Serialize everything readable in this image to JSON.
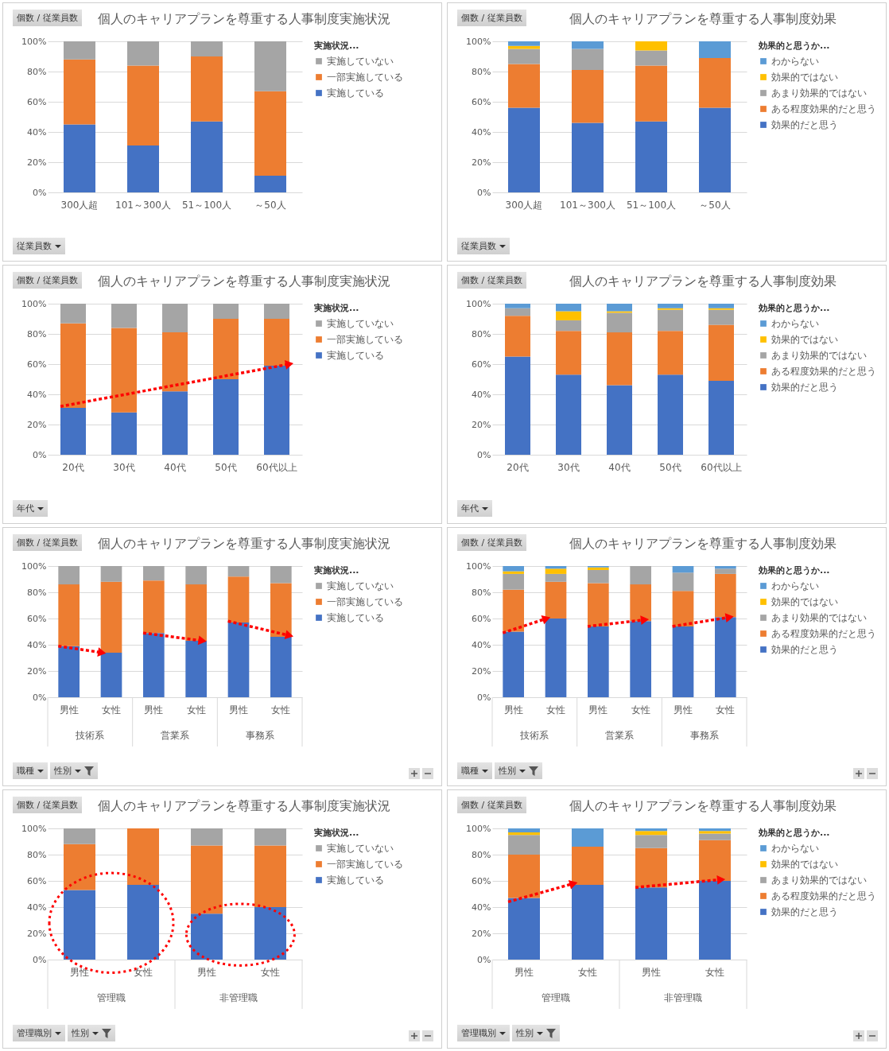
{
  "chart_data": [
    {
      "type": "bar",
      "stacked": true,
      "title": "個人のキャリアプランを尊重する人事制度実施状況",
      "ylabel": "個数 / 従業員数",
      "xlabel": "従業員数",
      "legend_title": "実施状況...",
      "legend": "right",
      "grid": "y",
      "categories": [
        "300人超",
        "101～300人",
        "51～100人",
        "～50人"
      ],
      "ylim": [
        0,
        100
      ],
      "yticks": [
        {
          "value": 0,
          "label": "0%"
        },
        {
          "value": 20,
          "label": "20%"
        },
        {
          "value": 40,
          "label": "40%"
        },
        {
          "value": 60,
          "label": "60%"
        },
        {
          "value": 80,
          "label": "80%"
        },
        {
          "value": 100,
          "label": "100%"
        }
      ],
      "series": [
        {
          "name": "実施している",
          "color": "#4472c4",
          "values": [
            45,
            31,
            47,
            11
          ]
        },
        {
          "name": "一部実施している",
          "color": "#ed7d31",
          "values": [
            43,
            53,
            43,
            56
          ]
        },
        {
          "name": "実施していない",
          "color": "#a5a5a5",
          "values": [
            12,
            16,
            10,
            33
          ]
        }
      ]
    },
    {
      "type": "bar",
      "stacked": true,
      "title": "個人のキャリアプランを尊重する人事制度効果",
      "ylabel": "個数 / 従業員数",
      "xlabel": "従業員数",
      "legend_title": "効果的と思うか...",
      "legend": "right",
      "grid": "y",
      "categories": [
        "300人超",
        "101～300人",
        "51～100人",
        "～50人"
      ],
      "ylim": [
        0,
        100
      ],
      "yticks": [
        {
          "value": 0,
          "label": "0%"
        },
        {
          "value": 20,
          "label": "20%"
        },
        {
          "value": 40,
          "label": "40%"
        },
        {
          "value": 60,
          "label": "60%"
        },
        {
          "value": 80,
          "label": "80%"
        },
        {
          "value": 100,
          "label": "100%"
        }
      ],
      "series": [
        {
          "name": "効果的だと思う",
          "color": "#4472c4",
          "values": [
            56,
            46,
            47,
            56
          ]
        },
        {
          "name": "ある程度効果的だと思う",
          "color": "#ed7d31",
          "values": [
            29,
            35,
            37,
            33
          ]
        },
        {
          "name": "あまり効果的ではない",
          "color": "#a5a5a5",
          "values": [
            10,
            14,
            10,
            0
          ]
        },
        {
          "name": "効果的ではない",
          "color": "#ffc000",
          "values": [
            2,
            0,
            6,
            0
          ]
        },
        {
          "name": "わからない",
          "color": "#5b9bd5",
          "values": [
            3,
            5,
            0,
            11
          ]
        }
      ]
    },
    {
      "type": "bar",
      "stacked": true,
      "title": "個人のキャリアプランを尊重する人事制度実施状況",
      "ylabel": "個数 / 従業員数",
      "xlabel": "年代",
      "legend_title": "実施状況...",
      "legend": "right",
      "grid": "y",
      "categories": [
        "20代",
        "30代",
        "40代",
        "50代",
        "60代以上"
      ],
      "ylim": [
        0,
        100
      ],
      "yticks": [
        {
          "value": 0,
          "label": "0%"
        },
        {
          "value": 20,
          "label": "20%"
        },
        {
          "value": 40,
          "label": "40%"
        },
        {
          "value": 60,
          "label": "60%"
        },
        {
          "value": 80,
          "label": "80%"
        },
        {
          "value": 100,
          "label": "100%"
        }
      ],
      "series": [
        {
          "name": "実施している",
          "color": "#4472c4",
          "values": [
            31,
            28,
            42,
            50,
            59
          ]
        },
        {
          "name": "一部実施している",
          "color": "#ed7d31",
          "values": [
            56,
            56,
            39,
            40,
            31
          ]
        },
        {
          "name": "実施していない",
          "color": "#a5a5a5",
          "values": [
            13,
            16,
            19,
            10,
            10
          ]
        }
      ]
    },
    {
      "type": "bar",
      "stacked": true,
      "title": "個人のキャリアプランを尊重する人事制度効果",
      "ylabel": "個数 / 従業員数",
      "xlabel": "年代",
      "legend_title": "効果的と思うか...",
      "legend": "right",
      "grid": "y",
      "categories": [
        "20代",
        "30代",
        "40代",
        "50代",
        "60代以上"
      ],
      "ylim": [
        0,
        100
      ],
      "yticks": [
        {
          "value": 0,
          "label": "0%"
        },
        {
          "value": 20,
          "label": "20%"
        },
        {
          "value": 40,
          "label": "40%"
        },
        {
          "value": 60,
          "label": "60%"
        },
        {
          "value": 80,
          "label": "80%"
        },
        {
          "value": 100,
          "label": "100%"
        }
      ],
      "series": [
        {
          "name": "効果的だと思う",
          "color": "#4472c4",
          "values": [
            65,
            53,
            46,
            53,
            49
          ]
        },
        {
          "name": "ある程度効果的だと思う",
          "color": "#ed7d31",
          "values": [
            27,
            29,
            35,
            29,
            37
          ]
        },
        {
          "name": "あまり効果的ではない",
          "color": "#a5a5a5",
          "values": [
            5,
            7,
            13,
            14,
            10
          ]
        },
        {
          "name": "効果的ではない",
          "color": "#ffc000",
          "values": [
            0,
            6,
            1,
            1,
            1
          ]
        },
        {
          "name": "わからない",
          "color": "#5b9bd5",
          "values": [
            3,
            5,
            5,
            3,
            3
          ]
        }
      ]
    },
    {
      "type": "bar",
      "stacked": true,
      "title": "個人のキャリアプランを尊重する人事制度実施状況",
      "ylabel": "個数 / 従業員数",
      "xlabel": "職種 性別",
      "legend_title": "実施状況...",
      "legend": "right",
      "grid": "y",
      "categories": [
        "男性",
        "女性",
        "男性",
        "女性",
        "男性",
        "女性"
      ],
      "annotations": [
        "技術系",
        "営業系",
        "事務系"
      ],
      "ylim": [
        0,
        100
      ],
      "yticks": [
        {
          "value": 0,
          "label": "0%"
        },
        {
          "value": 20,
          "label": "20%"
        },
        {
          "value": 40,
          "label": "40%"
        },
        {
          "value": 60,
          "label": "60%"
        },
        {
          "value": 80,
          "label": "80%"
        },
        {
          "value": 100,
          "label": "100%"
        }
      ],
      "series": [
        {
          "name": "実施している",
          "color": "#4472c4",
          "values": [
            39,
            34,
            49,
            43,
            57,
            46
          ]
        },
        {
          "name": "一部実施している",
          "color": "#ed7d31",
          "values": [
            47,
            54,
            40,
            43,
            35,
            41
          ]
        },
        {
          "name": "実施していない",
          "color": "#a5a5a5",
          "values": [
            14,
            12,
            11,
            14,
            8,
            13
          ]
        }
      ]
    },
    {
      "type": "bar",
      "stacked": true,
      "title": "個人のキャリアプランを尊重する人事制度効果",
      "ylabel": "個数 / 従業員数",
      "xlabel": "職種 性別",
      "legend_title": "効果的と思うか...",
      "legend": "right",
      "grid": "y",
      "categories": [
        "男性",
        "女性",
        "男性",
        "女性",
        "男性",
        "女性"
      ],
      "annotations": [
        "技術系",
        "営業系",
        "事務系"
      ],
      "ylim": [
        0,
        100
      ],
      "yticks": [
        {
          "value": 0,
          "label": "0%"
        },
        {
          "value": 20,
          "label": "20%"
        },
        {
          "value": 40,
          "label": "40%"
        },
        {
          "value": 60,
          "label": "60%"
        },
        {
          "value": 80,
          "label": "80%"
        },
        {
          "value": 100,
          "label": "100%"
        }
      ],
      "series": [
        {
          "name": "効果的だと思う",
          "color": "#4472c4",
          "values": [
            50,
            60,
            54,
            58,
            54,
            61
          ]
        },
        {
          "name": "ある程度効果的だと思う",
          "color": "#ed7d31",
          "values": [
            32,
            28,
            33,
            28,
            27,
            33
          ]
        },
        {
          "name": "あまり効果的ではない",
          "color": "#a5a5a5",
          "values": [
            12,
            6,
            10,
            14,
            14,
            4
          ]
        },
        {
          "name": "効果的ではない",
          "color": "#ffc000",
          "values": [
            2,
            4,
            2,
            0,
            0,
            0
          ]
        },
        {
          "name": "わからない",
          "color": "#5b9bd5",
          "values": [
            4,
            2,
            1,
            0,
            5,
            2
          ]
        }
      ]
    },
    {
      "type": "bar",
      "stacked": true,
      "title": "個人のキャリアプランを尊重する人事制度実施状況",
      "ylabel": "個数 / 従業員数",
      "xlabel": "管理職別 性別",
      "legend_title": "実施状況...",
      "legend": "right",
      "grid": "y",
      "categories": [
        "男性",
        "女性",
        "男性",
        "女性"
      ],
      "annotations": [
        "管理職",
        "非管理職"
      ],
      "ylim": [
        0,
        100
      ],
      "yticks": [
        {
          "value": 0,
          "label": "0%"
        },
        {
          "value": 20,
          "label": "20%"
        },
        {
          "value": 40,
          "label": "40%"
        },
        {
          "value": 60,
          "label": "60%"
        },
        {
          "value": 80,
          "label": "80%"
        },
        {
          "value": 100,
          "label": "100%"
        }
      ],
      "series": [
        {
          "name": "実施している",
          "color": "#4472c4",
          "values": [
            53,
            57,
            35,
            40
          ]
        },
        {
          "name": "一部実施している",
          "color": "#ed7d31",
          "values": [
            35,
            43,
            52,
            47
          ]
        },
        {
          "name": "実施していない",
          "color": "#a5a5a5",
          "values": [
            12,
            0,
            13,
            13
          ]
        }
      ]
    },
    {
      "type": "bar",
      "stacked": true,
      "title": "個人のキャリアプランを尊重する人事制度効果",
      "ylabel": "個数 / 従業員数",
      "xlabel": "管理職別 性別",
      "legend_title": "効果的と思うか...",
      "legend": "right",
      "grid": "y",
      "categories": [
        "男性",
        "女性",
        "男性",
        "女性"
      ],
      "annotations": [
        "管理職",
        "非管理職"
      ],
      "ylim": [
        0,
        100
      ],
      "yticks": [
        {
          "value": 0,
          "label": "0%"
        },
        {
          "value": 20,
          "label": "20%"
        },
        {
          "value": 40,
          "label": "40%"
        },
        {
          "value": 60,
          "label": "60%"
        },
        {
          "value": 80,
          "label": "80%"
        },
        {
          "value": 100,
          "label": "100%"
        }
      ],
      "series": [
        {
          "name": "効果的だと思う",
          "color": "#4472c4",
          "values": [
            47,
            57,
            55,
            60
          ]
        },
        {
          "name": "ある程度効果的だと思う",
          "color": "#ed7d31",
          "values": [
            33,
            29,
            30,
            31
          ]
        },
        {
          "name": "あまり効果的ではない",
          "color": "#a5a5a5",
          "values": [
            15,
            0,
            10,
            5
          ]
        },
        {
          "name": "効果的ではない",
          "color": "#ffc000",
          "values": [
            2,
            0,
            3,
            2
          ]
        },
        {
          "name": "わからない",
          "color": "#5b9bd5",
          "values": [
            3,
            14,
            2,
            2
          ]
        }
      ]
    }
  ]
}
